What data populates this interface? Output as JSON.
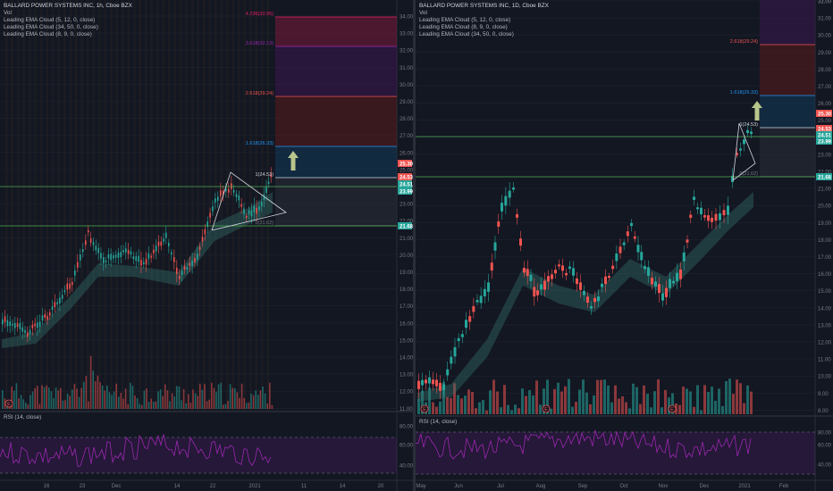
{
  "colors": {
    "bg": "#131722",
    "grid": "#1f2330",
    "axis": "#787b86",
    "up": "#26a69a",
    "down": "#ef5350",
    "rsi": "#9c27b0",
    "fib_green": "#4caf50",
    "arrow": "#b8c68c"
  },
  "left": {
    "legend": {
      "title": "BALLARD POWER SYSTEMS INC, 1h, Cboe BZX",
      "lines": [
        "Vol",
        "Leading EMA Cloud (5, 12, 0, close)",
        "Leading EMA Cloud (34, 50, 0, close)",
        "Leading EMA Cloud (8, 9, 0, close)"
      ]
    },
    "rsi_label": "RSI (14, close)",
    "price_axis": [
      "34.00",
      "33.00",
      "32.00",
      "31.00",
      "30.00",
      "29.00",
      "28.00",
      "27.00",
      "26.00",
      "25.00",
      "24.00",
      "23.00",
      "22.00",
      "21.00",
      "20.00",
      "19.00",
      "18.00",
      "17.00",
      "16.00",
      "15.00",
      "14.00",
      "13.00",
      "12.00",
      "11.00"
    ],
    "rsi_axis": [
      "80.00",
      "60.00",
      "40.00"
    ],
    "time_axis": [
      "16",
      "23",
      "Dec",
      "14",
      "22",
      "2021",
      "11",
      "14",
      "20"
    ],
    "fib_labels": [
      "4.236(33.95)",
      "3.618(32.13)",
      "2.618(29.24)",
      "1.618(26.33)",
      "1(24.53)",
      "0(21.62)"
    ],
    "price_tags": [
      "25.30",
      "24.53",
      "24.51",
      "23.99",
      "21.68"
    ],
    "event_marker": "E"
  },
  "right": {
    "legend": {
      "title": "BALLARD POWER SYSTEMS INC, 1D, Cboe BZX",
      "lines": [
        "Vol",
        "Leading EMA Cloud (5, 12, 0, close)",
        "Leading EMA Cloud (8, 9, 0, close)",
        "Leading EMA Cloud (34, 50, 0, close)"
      ]
    },
    "rsi_label": "RSI (14, close)",
    "price_axis": [
      "32.00",
      "31.00",
      "30.00",
      "29.00",
      "28.00",
      "27.00",
      "26.00",
      "25.00",
      "24.00",
      "23.00",
      "22.00",
      "21.00",
      "20.00",
      "19.00",
      "18.00",
      "17.00",
      "16.00",
      "15.00",
      "14.00",
      "13.00",
      "12.00",
      "11.00",
      "10.00",
      "9.00",
      "8.00"
    ],
    "rsi_axis": [
      "80.00",
      "60.00",
      "40.00"
    ],
    "time_axis": [
      "May",
      "Jun",
      "Jul",
      "Aug",
      "Sep",
      "Oct",
      "Nov",
      "Dec",
      "2021",
      "Feb"
    ],
    "fib_labels": [
      "2.618(29.24)",
      "1.618(26.33)",
      "1(24.53)",
      "0(21.62)"
    ],
    "price_tags": [
      "25.30",
      "24.53",
      "24.51",
      "23.99",
      "21.68"
    ],
    "top_tag": "31.00",
    "event_markers": [
      "E",
      "E",
      "E",
      "E"
    ]
  }
}
